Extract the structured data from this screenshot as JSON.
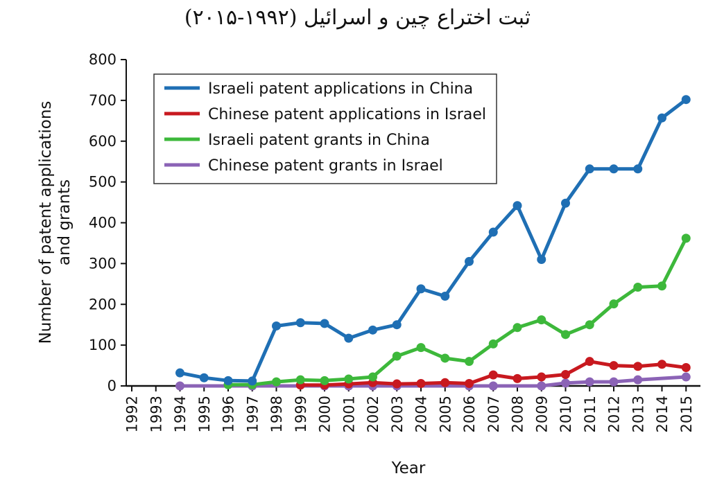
{
  "title": "ثبت اختراع چین و اسرائیل (۱۹۹۲-۲۰۱۵)",
  "chart_data": {
    "type": "line",
    "xlabel": "Year",
    "ylabel_lines": [
      "Number of patent applications",
      "and grants"
    ],
    "ylim": [
      0,
      800
    ],
    "y_ticks": [
      0,
      100,
      200,
      300,
      400,
      500,
      600,
      700,
      800
    ],
    "x_ticks": [
      1992,
      1993,
      1994,
      1995,
      1996,
      1997,
      1998,
      1999,
      2000,
      2001,
      2002,
      2003,
      2004,
      2005,
      2006,
      2007,
      2008,
      2009,
      2010,
      2011,
      2012,
      2013,
      2014,
      2015
    ],
    "legend_position": "top-left",
    "grid": false,
    "series": [
      {
        "name": "Israeli patent applications in China",
        "color": "#1f6fb4",
        "points": [
          [
            1994,
            32
          ],
          [
            1995,
            20
          ],
          [
            1996,
            13
          ],
          [
            1997,
            12
          ],
          [
            1998,
            147
          ],
          [
            1999,
            155
          ],
          [
            2000,
            153
          ],
          [
            2001,
            117
          ],
          [
            2002,
            137
          ],
          [
            2003,
            150
          ],
          [
            2004,
            238
          ],
          [
            2005,
            220
          ],
          [
            2006,
            305
          ],
          [
            2007,
            377
          ],
          [
            2008,
            442
          ],
          [
            2009,
            310
          ],
          [
            2010,
            448
          ],
          [
            2011,
            532
          ],
          [
            2012,
            532
          ],
          [
            2013,
            532
          ],
          [
            2014,
            657
          ],
          [
            2015,
            702
          ]
        ]
      },
      {
        "name": "Chinese patent applications in Israel",
        "color": "#c8191f",
        "points": [
          [
            1999,
            2
          ],
          [
            2000,
            2
          ],
          [
            2001,
            5
          ],
          [
            2002,
            8
          ],
          [
            2003,
            5
          ],
          [
            2004,
            6
          ],
          [
            2005,
            8
          ],
          [
            2006,
            6
          ],
          [
            2007,
            27
          ],
          [
            2008,
            18
          ],
          [
            2009,
            22
          ],
          [
            2010,
            28
          ],
          [
            2011,
            60
          ],
          [
            2012,
            50
          ],
          [
            2013,
            48
          ],
          [
            2014,
            53
          ],
          [
            2015,
            45
          ]
        ]
      },
      {
        "name": "Israeli patent grants in China",
        "color": "#3db83b",
        "points": [
          [
            1996,
            3
          ],
          [
            1997,
            3
          ],
          [
            1998,
            10
          ],
          [
            1999,
            15
          ],
          [
            2000,
            13
          ],
          [
            2001,
            17
          ],
          [
            2002,
            22
          ],
          [
            2003,
            73
          ],
          [
            2004,
            94
          ],
          [
            2005,
            68
          ],
          [
            2006,
            60
          ],
          [
            2007,
            103
          ],
          [
            2008,
            143
          ],
          [
            2009,
            162
          ],
          [
            2010,
            126
          ],
          [
            2011,
            150
          ],
          [
            2012,
            201
          ],
          [
            2013,
            242
          ],
          [
            2014,
            245
          ],
          [
            2015,
            362
          ]
        ]
      },
      {
        "name": "Chinese patent grants in Israel",
        "color": "#8b63b6",
        "points": [
          [
            1994,
            0
          ],
          [
            1997,
            0
          ],
          [
            2000,
            0
          ],
          [
            2001,
            0
          ],
          [
            2002,
            0
          ],
          [
            2003,
            0
          ],
          [
            2006,
            0
          ],
          [
            2007,
            0
          ],
          [
            2009,
            0
          ],
          [
            2010,
            7
          ],
          [
            2011,
            10
          ],
          [
            2012,
            10
          ],
          [
            2013,
            15
          ],
          [
            2015,
            22
          ]
        ]
      }
    ]
  }
}
